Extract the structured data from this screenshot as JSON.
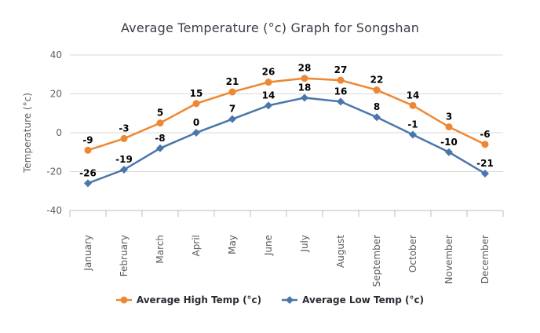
{
  "chart_data": {
    "type": "line",
    "title": "Average Temperature (°c) Graph for Songshan",
    "categories": [
      "January",
      "February",
      "March",
      "April",
      "May",
      "June",
      "July",
      "August",
      "September",
      "October",
      "November",
      "December"
    ],
    "series": [
      {
        "name": "Average High Temp (°c)",
        "marker": "circle",
        "color": "#ED8733",
        "values": [
          -9,
          -3,
          5,
          15,
          21,
          26,
          28,
          27,
          22,
          14,
          3,
          -6
        ]
      },
      {
        "name": "Average Low Temp (°c)",
        "marker": "diamond",
        "color": "#4A77AB",
        "values": [
          -26,
          -19,
          -8,
          0,
          7,
          14,
          18,
          16,
          8,
          -1,
          -10,
          -21
        ]
      }
    ],
    "xlabel": "",
    "ylabel": "Temperature (°c)",
    "ylim": [
      -40,
      40
    ],
    "yticks": [
      40,
      20,
      0,
      -20,
      -40
    ],
    "grid": "horizontal-only",
    "data_labels": true,
    "legend_position": "bottom",
    "colors": {
      "gridline": "#D8D8D8",
      "axis": "#B7BEC8",
      "tick_label": "#606060",
      "month_label": "#5A5B60",
      "data_label": "#000000",
      "title": "#3A3D46"
    }
  }
}
